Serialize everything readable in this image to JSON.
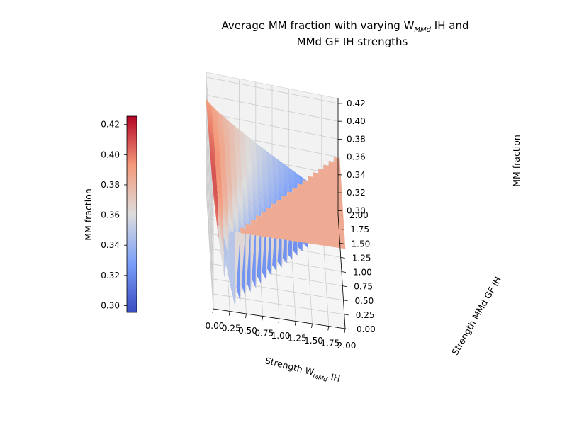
{
  "chart_data": {
    "type": "surface3d",
    "title_line1": "Average MM fraction with varying W",
    "title_sub": "MMd",
    "title_line1_end": " IH and",
    "title_line2": "MMd GF IH strengths",
    "xlabel_pre": "Strength W",
    "xlabel_sub": "MMd",
    "xlabel_post": " IH",
    "ylabel": "Strength MMd GF IH",
    "zlabel": "MM fraction",
    "x_ticks": [
      "0.00",
      "0.25",
      "0.50",
      "0.75",
      "1.00",
      "1.25",
      "1.50",
      "1.75",
      "2.00"
    ],
    "y_ticks": [
      "0.00",
      "0.25",
      "0.50",
      "0.75",
      "1.00",
      "1.25",
      "1.50",
      "1.75",
      "2.00"
    ],
    "z_ticks": [
      "0.30",
      "0.32",
      "0.34",
      "0.36",
      "0.38",
      "0.40",
      "0.42"
    ],
    "xlim": [
      0,
      2
    ],
    "ylim": [
      0,
      2
    ],
    "zlim": [
      0.2955,
      0.4255
    ],
    "grid": true,
    "colormap": "coolwarm",
    "plateau_value": 0.385,
    "surface_description_points": [
      {
        "x": 0.0,
        "y": 0.0,
        "z": 0.425
      },
      {
        "x": 0.0,
        "y": 0.35,
        "z": 0.418
      },
      {
        "x": 0.2,
        "y": 0.0,
        "z": 0.39
      },
      {
        "x": 0.5,
        "y": 0.0,
        "z": 0.35
      },
      {
        "x": 0.7,
        "y": 0.2,
        "z": 0.31
      },
      {
        "x": 0.95,
        "y": 0.35,
        "z": 0.296
      },
      {
        "x": 1.4,
        "y": 1.0,
        "z": 0.385
      },
      {
        "x": 2.0,
        "y": 2.0,
        "z": 0.385
      }
    ],
    "colorbar": {
      "label": "MM fraction",
      "ticks": [
        "0.30",
        "0.32",
        "0.34",
        "0.36",
        "0.38",
        "0.40",
        "0.42"
      ],
      "range": [
        0.2955,
        0.4255
      ]
    }
  }
}
